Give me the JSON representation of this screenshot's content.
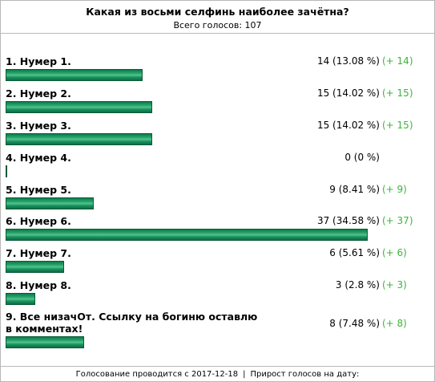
{
  "poll": {
    "question": "Какая из восьми селфинь наиболее зачётна?",
    "total_votes_text": "Всего голосов: 107",
    "options": [
      {
        "label": "1. Нумер 1.",
        "count": "14 (13.08 %)",
        "delta": "(+ 14)",
        "percent": 13.08
      },
      {
        "label": "2. Нумер 2.",
        "count": "15 (14.02 %)",
        "delta": "(+ 15)",
        "percent": 14.02
      },
      {
        "label": "3. Нумер 3.",
        "count": "15 (14.02 %)",
        "delta": "(+ 15)",
        "percent": 14.02
      },
      {
        "label": "4. Нумер 4.",
        "count": "0 (0 %)",
        "delta": "",
        "percent": 0
      },
      {
        "label": "5. Нумер 5.",
        "count": "9 (8.41 %)",
        "delta": "(+ 9)",
        "percent": 8.41
      },
      {
        "label": "6. Нумер 6.",
        "count": "37 (34.58 %)",
        "delta": "(+ 37)",
        "percent": 34.58
      },
      {
        "label": "7. Нумер 7.",
        "count": "6 (5.61 %)",
        "delta": "(+ 6)",
        "percent": 5.61
      },
      {
        "label": "8. Нумер 8.",
        "count": "3 (2.8 %)",
        "delta": "(+ 3)",
        "percent": 2.8
      },
      {
        "label": "9. Все низачОт. Ссылку на богиню оставлю в комментах!",
        "count": "8 (7.48 %)",
        "delta": "(+ 8)",
        "percent": 7.48
      }
    ]
  },
  "footer": {
    "started": "Голосование проводится с 2017-12-18",
    "separator": "|",
    "growth": "Прирост голосов на дату:"
  },
  "colors": {
    "bar": "#1c9460",
    "delta_text": "#3cb43c",
    "border": "#b8b8b8"
  }
}
